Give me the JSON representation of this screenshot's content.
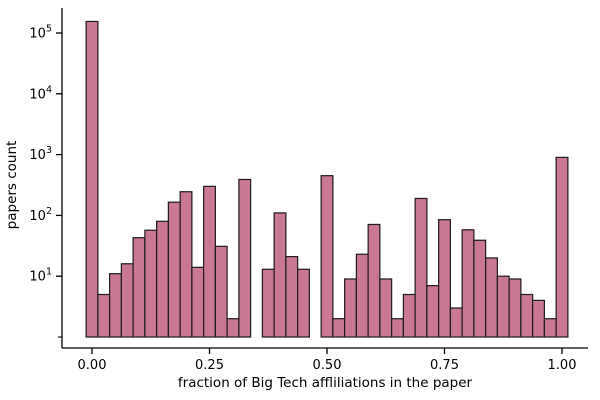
{
  "figure": {
    "xlabel": "fraction of Big Tech affliliations in the paper",
    "ylabel": "papers count",
    "x_tick_labels": [
      "0.00",
      "0.25",
      "0.50",
      "0.75",
      "1.00"
    ],
    "x_tick_values": [
      0,
      0.25,
      0.5,
      0.75,
      1.0
    ],
    "y_tick_base": "10",
    "y_tick_exponents": [
      5,
      4,
      3,
      2,
      1
    ],
    "y_minor_unlabeled_exponent": 0
  },
  "colors": {
    "bar_fill": "#c97795",
    "bar_edge": "#1c1c1c",
    "axis": "#000000",
    "background": "#ffffff"
  },
  "chart_data": {
    "type": "bar",
    "subtype": "histogram",
    "title": "",
    "xlabel": "fraction of Big Tech affliliations in the paper",
    "ylabel": "papers count",
    "yscale": "log",
    "ylim": [
      1,
      200000
    ],
    "xlim": [
      -0.065,
      1.055
    ],
    "grid": false,
    "legend": false,
    "bin_width": 0.025,
    "bin_centers": [
      0.0,
      0.025,
      0.05,
      0.075,
      0.1,
      0.125,
      0.15,
      0.175,
      0.2,
      0.225,
      0.25,
      0.275,
      0.3,
      0.325,
      0.35,
      0.375,
      0.4,
      0.425,
      0.45,
      0.475,
      0.5,
      0.525,
      0.55,
      0.575,
      0.6,
      0.625,
      0.65,
      0.675,
      0.7,
      0.725,
      0.75,
      0.775,
      0.8,
      0.825,
      0.85,
      0.875,
      0.9,
      0.925,
      0.95,
      0.975,
      1.0
    ],
    "values": [
      155000,
      5,
      11,
      16,
      43,
      57,
      80,
      165,
      245,
      14,
      300,
      31,
      2,
      390,
      0,
      13,
      110,
      21,
      13,
      0,
      450,
      2,
      9,
      23,
      71,
      9,
      2,
      5,
      190,
      7,
      85,
      3,
      58,
      39,
      20,
      10,
      9,
      5,
      4,
      2,
      900
    ]
  }
}
